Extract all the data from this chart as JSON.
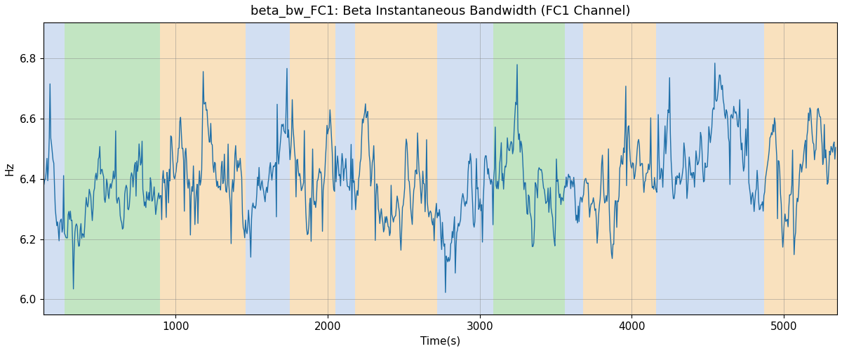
{
  "title": "beta_bw_FC1: Beta Instantaneous Bandwidth (FC1 Channel)",
  "xlabel": "Time(s)",
  "ylabel": "Hz",
  "ylim": [
    5.95,
    6.92
  ],
  "xlim": [
    130,
    5350
  ],
  "line_color": "#1f6fa8",
  "line_width": 1.0,
  "background_bands": [
    {
      "xmin": 130,
      "xmax": 270,
      "color": "#aec6e8",
      "alpha": 0.55
    },
    {
      "xmin": 270,
      "xmax": 900,
      "color": "#90d090",
      "alpha": 0.55
    },
    {
      "xmin": 900,
      "xmax": 1460,
      "color": "#f5c98a",
      "alpha": 0.55
    },
    {
      "xmin": 1460,
      "xmax": 1750,
      "color": "#aec6e8",
      "alpha": 0.55
    },
    {
      "xmin": 1750,
      "xmax": 2050,
      "color": "#f5c98a",
      "alpha": 0.55
    },
    {
      "xmin": 2050,
      "xmax": 2180,
      "color": "#aec6e8",
      "alpha": 0.55
    },
    {
      "xmin": 2180,
      "xmax": 2720,
      "color": "#f5c98a",
      "alpha": 0.55
    },
    {
      "xmin": 2720,
      "xmax": 2870,
      "color": "#aec6e8",
      "alpha": 0.55
    },
    {
      "xmin": 2870,
      "xmax": 3090,
      "color": "#aec6e8",
      "alpha": 0.55
    },
    {
      "xmin": 3090,
      "xmax": 3560,
      "color": "#90d090",
      "alpha": 0.55
    },
    {
      "xmin": 3560,
      "xmax": 3680,
      "color": "#aec6e8",
      "alpha": 0.55
    },
    {
      "xmin": 3680,
      "xmax": 4160,
      "color": "#f5c98a",
      "alpha": 0.55
    },
    {
      "xmin": 4160,
      "xmax": 4720,
      "color": "#aec6e8",
      "alpha": 0.55
    },
    {
      "xmin": 4720,
      "xmax": 4870,
      "color": "#aec6e8",
      "alpha": 0.55
    },
    {
      "xmin": 4870,
      "xmax": 5350,
      "color": "#f5c98a",
      "alpha": 0.55
    }
  ],
  "seed": 42,
  "n_points": 1050,
  "x_start": 135,
  "x_end": 5340,
  "title_fontsize": 13,
  "tick_fontsize": 11,
  "label_fontsize": 11
}
